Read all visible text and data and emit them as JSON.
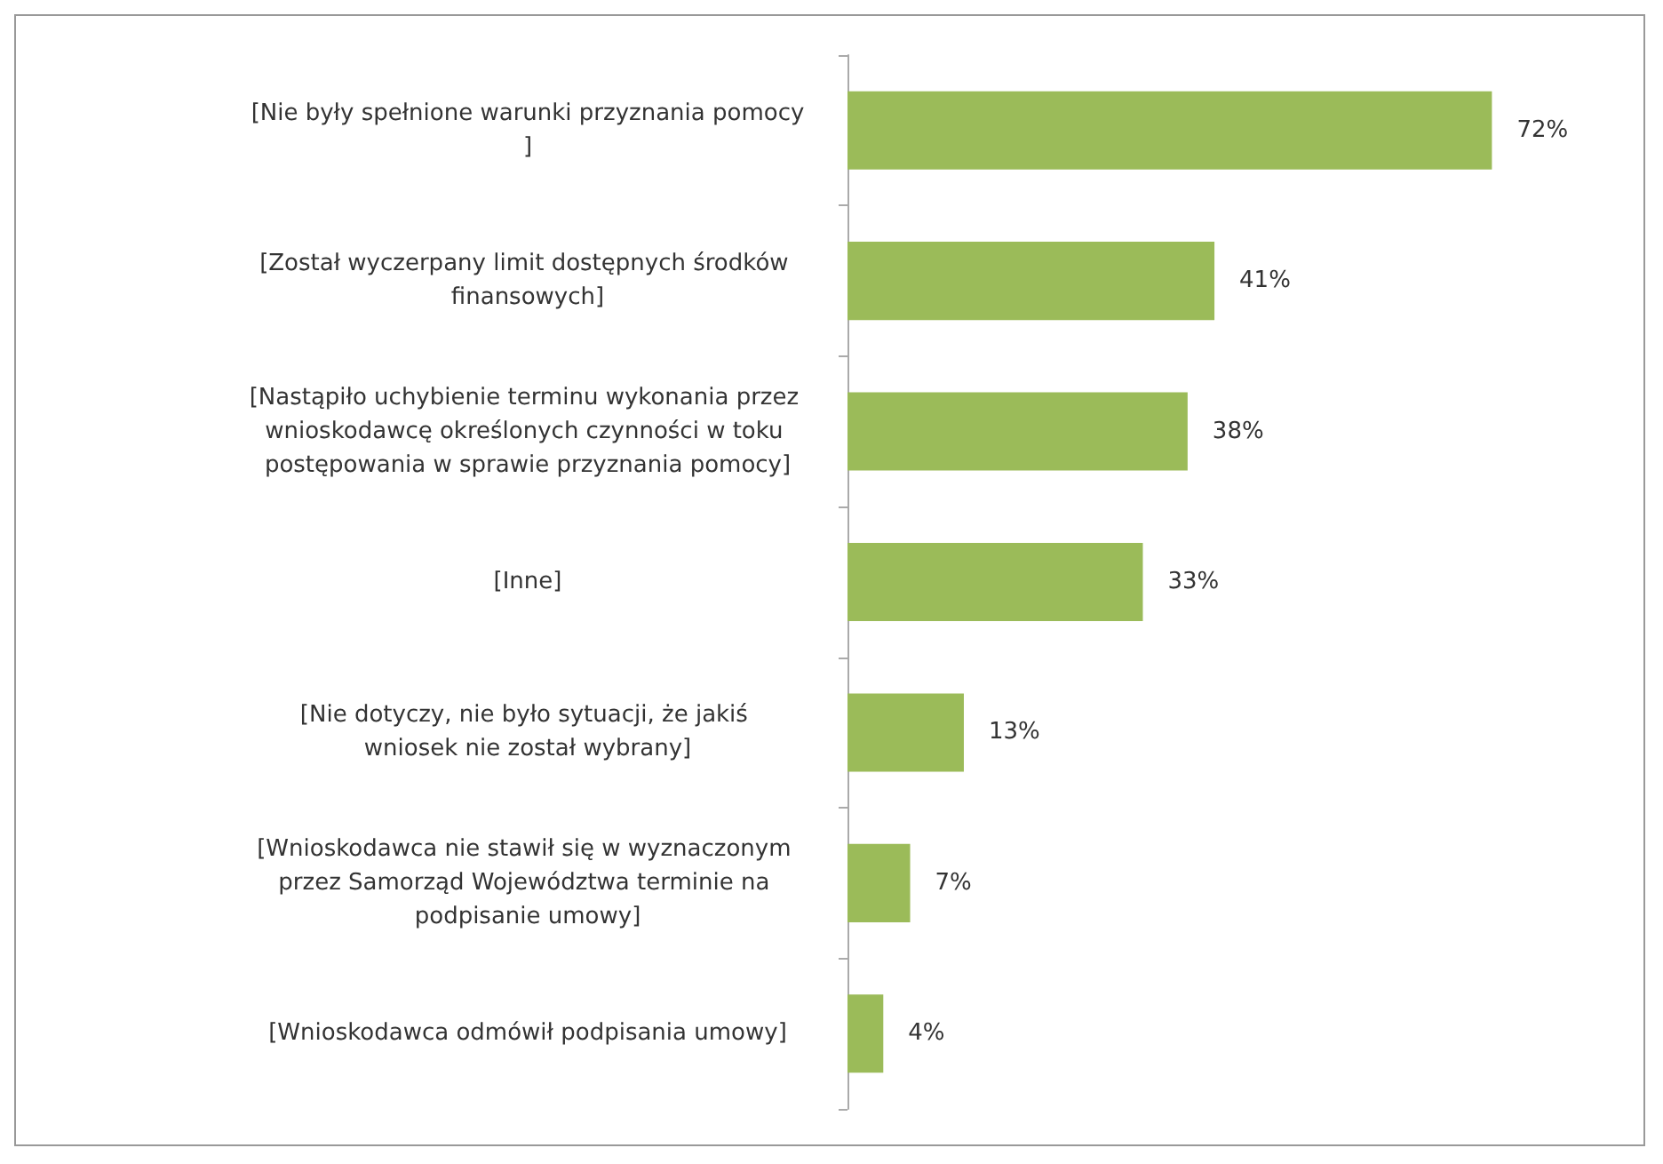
{
  "chart_data": {
    "type": "bar",
    "orientation": "horizontal",
    "categories": [
      "[Nie były spełnione warunki przyznania pomocy]",
      "[Został wyczerpany limit dostępnych środków finansowych]",
      "[Nastąpiło uchybienie terminu wykonania przez wnioskodawcę określonych czynności w toku postępowania w sprawie przyznania pomocy]",
      "[Inne]",
      "[Nie dotyczy, nie było sytuacji, że jakiś wniosek nie został wybrany]",
      "[Wnioskodawca nie stawił się w wyznaczonym przez Samorząd Województwa terminie na podpisanie umowy]",
      "[Wnioskodawca odmówił podpisania umowy]"
    ],
    "values": [
      72,
      41,
      38,
      33,
      13,
      7,
      4
    ],
    "value_labels": [
      "72%",
      "41%",
      "38%",
      "33%",
      "13%",
      "7%",
      "4%"
    ],
    "color": "#9bbb59"
  }
}
